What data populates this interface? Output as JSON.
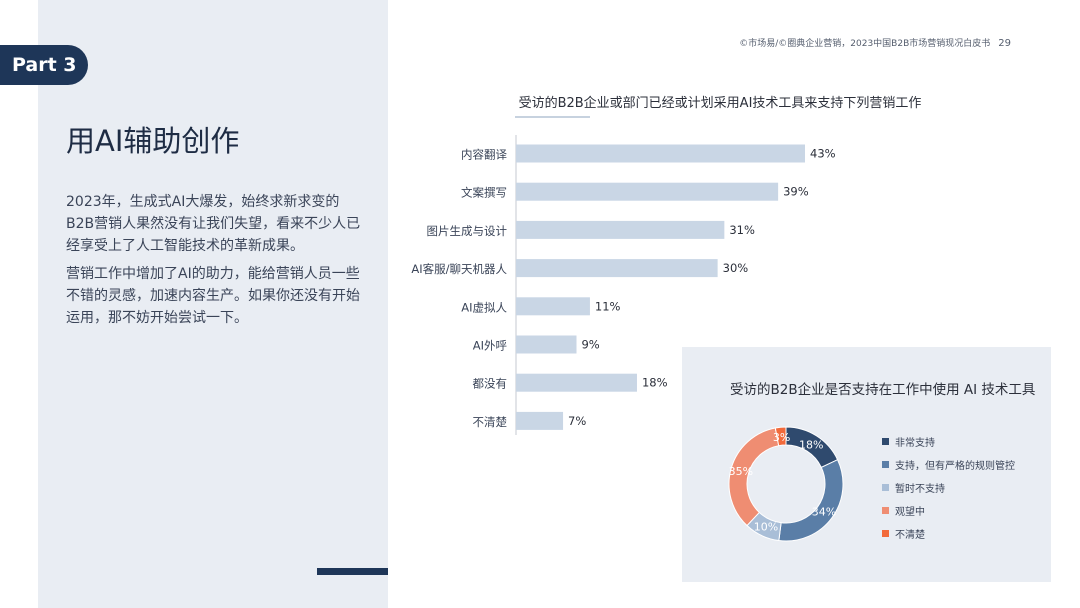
{
  "part_badge": "Part 3",
  "page_title": "用AI辅助创作",
  "intro": [
    "2023年，生成式AI大爆发，始终求新求变的B2B营销人果然没有让我们失望，看来不少人已经享受上了人工智能技术的革新成果。",
    "营销工作中增加了AI的助力，能给营销人员一些不错的灵感，加速内容生产。如果你还没有开始运用，那不妨开始尝试一下。"
  ],
  "header": {
    "source": "©市场易/©圈典企业营销，2023中国B2B市场营销现况白皮书",
    "page_number": "29"
  },
  "colors": {
    "dark_navy": "#1e3658",
    "bar_fill": "#c9d6e5",
    "donut_navy": "#2f4a6e",
    "donut_blue": "#5a7ea7",
    "donut_lightblue": "#a9bed7",
    "donut_salmon": "#ef8d72",
    "donut_orange": "#f26a3b"
  },
  "chart_data": [
    {
      "type": "bar",
      "orientation": "horizontal",
      "title": "受访的B2B企业或部门已经或计划采用AI技术工具来支持下列营销工作",
      "categories": [
        "内容翻译",
        "文案撰写",
        "图片生成与设计",
        "AI客服/聊天机器人",
        "AI虚拟人",
        "AI外呼",
        "都没有",
        "不清楚"
      ],
      "values": [
        43,
        39,
        31,
        30,
        11,
        9,
        18,
        7
      ],
      "value_labels": [
        "43%",
        "39%",
        "31%",
        "30%",
        "11%",
        "9%",
        "18%",
        "7%"
      ],
      "unit": "%",
      "xlim": [
        0,
        43
      ]
    },
    {
      "type": "pie",
      "style": "donut",
      "title": "受访的B2B企业是否支持在工作中使用 AI 技术工具",
      "categories": [
        "非常支持",
        "支持，但有严格的规则管控",
        "暂时不支持",
        "观望中",
        "不清楚"
      ],
      "values": [
        18,
        34,
        10,
        35,
        3
      ],
      "value_labels": [
        "18%",
        "34%",
        "10%",
        "35%",
        "3%"
      ],
      "colors": [
        "#2f4a6e",
        "#5a7ea7",
        "#a9bed7",
        "#ef8d72",
        "#f26a3b"
      ],
      "legend_position": "right"
    }
  ]
}
